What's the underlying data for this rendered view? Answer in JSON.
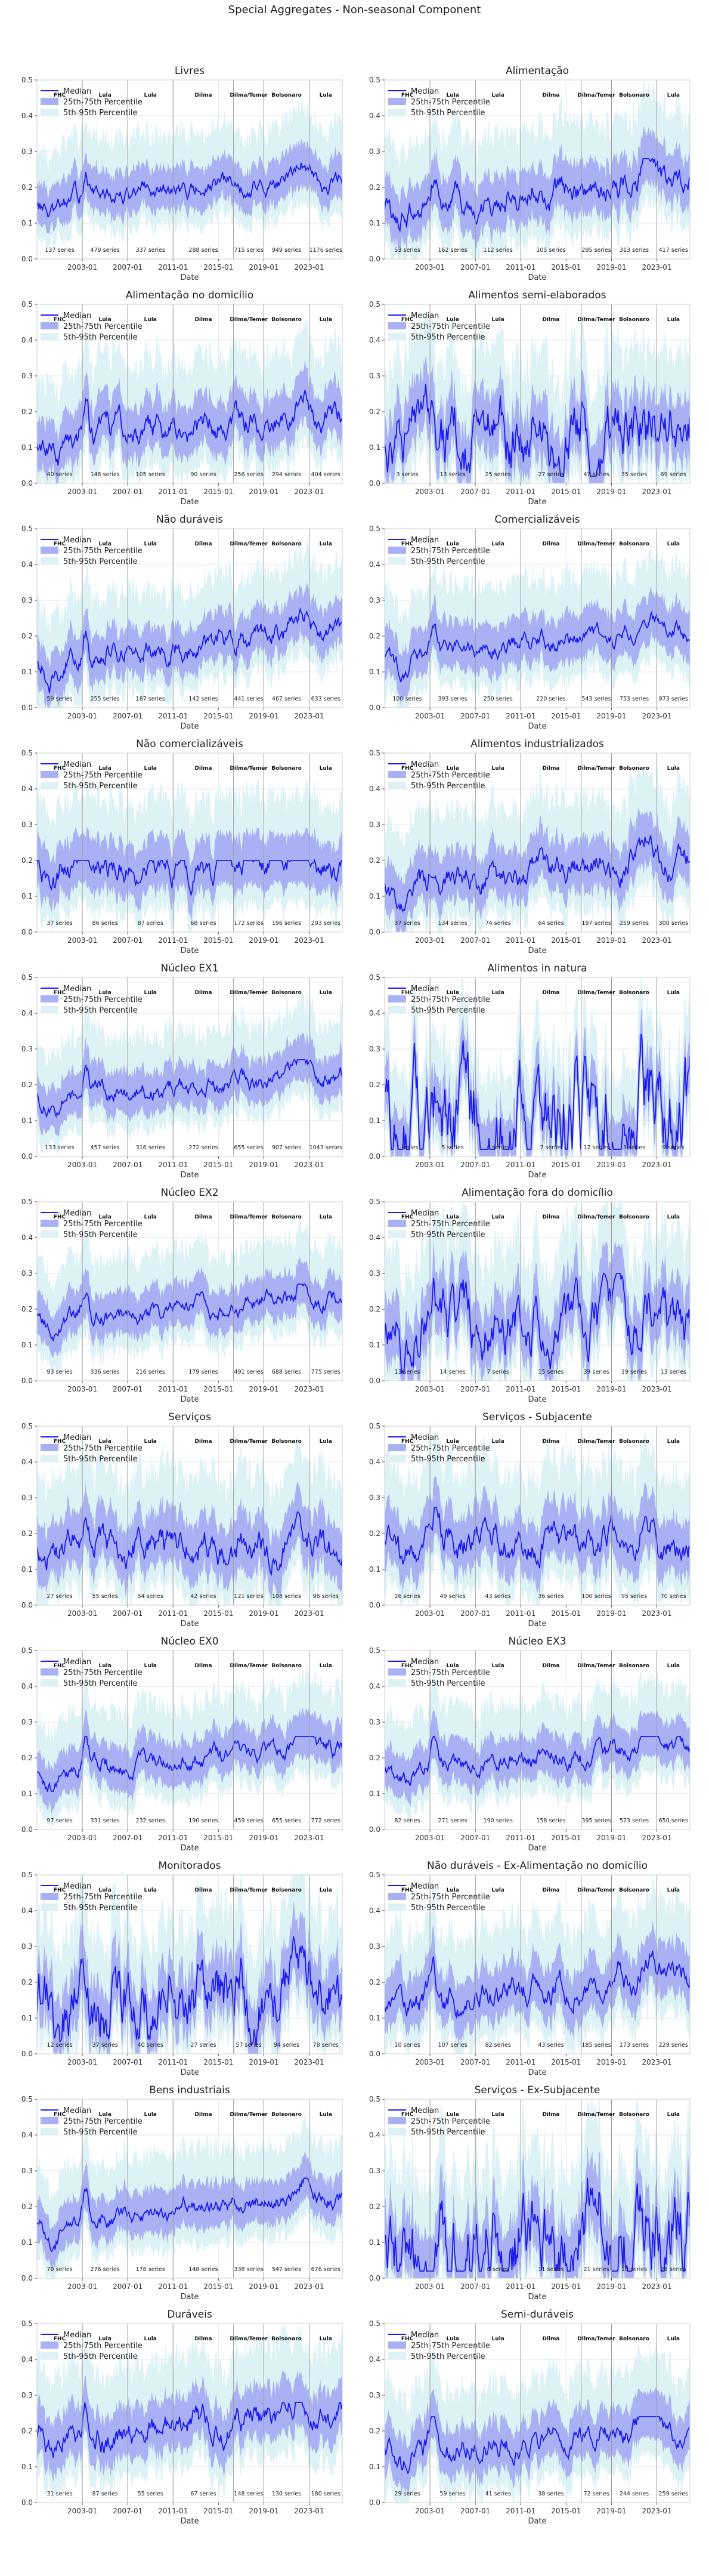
{
  "figure": {
    "suptitle": "Special Aggregates - Non-seasonal Component"
  },
  "chart_data": {
    "type": "line",
    "layout": "12 rows x 2 columns grid of panels",
    "xlabel": "Date",
    "ylim": [
      0.0,
      0.5
    ],
    "yticks": [
      0.0,
      0.1,
      0.2,
      0.3,
      0.4,
      0.5
    ],
    "xlim": [
      "1999-01",
      "2025-12"
    ],
    "xticks": [
      "2003-01",
      "2007-01",
      "2011-01",
      "2015-01",
      "2019-01",
      "2023-01"
    ],
    "grid": true,
    "legend": {
      "placement": "upper-left",
      "entries": [
        "Median",
        "25th-75th Percentile",
        "5th-95th Percentile"
      ]
    },
    "colors": {
      "median": "#1a1aee",
      "iqr": "#a9b1f4",
      "p5_95": "#ddf2f5",
      "divider": "#9a9a9a"
    },
    "eras": [
      "FHC",
      "Lula",
      "Lula",
      "Dilma",
      "Dilma/Temer",
      "Bolsonaro",
      "Lula"
    ],
    "era_boundaries": [
      "2003-01",
      "2007-01",
      "2011-01",
      "2016-05",
      "2019-01",
      "2023-01"
    ],
    "panels": [
      {
        "title": "Livres",
        "counts": [
          "137 series",
          "479 series",
          "337 series",
          "288 series",
          "715 series",
          "949 series",
          "1176 series"
        ],
        "profile": {
          "base": 0.16,
          "trend": 0.06,
          "vol": 0.02,
          "spread": 0.1,
          "pk": 0.28
        }
      },
      {
        "title": "Alimentação",
        "counts": [
          "53 series",
          "162 series",
          "112 series",
          "105 series",
          "295 series",
          "313 series",
          "417 series"
        ],
        "profile": {
          "base": 0.15,
          "trend": 0.07,
          "vol": 0.03,
          "spread": 0.12,
          "pk": 0.28
        }
      },
      {
        "title": "Alimentação no domicílio",
        "counts": [
          "40 series",
          "148 series",
          "105 series",
          "90 series",
          "256 series",
          "294 series",
          "404 series"
        ],
        "profile": {
          "base": 0.12,
          "trend": 0.08,
          "vol": 0.03,
          "spread": 0.12,
          "pk": 0.28
        }
      },
      {
        "title": "Alimentos semi-elaborados",
        "counts": [
          "3 series",
          "13 series",
          "25 series",
          "27 series",
          "47 series",
          "35 series",
          "69 series"
        ],
        "profile": {
          "base": 0.12,
          "trend": 0.05,
          "vol": 0.07,
          "spread": 0.14,
          "pk": 0.36
        }
      },
      {
        "title": "Não duráveis",
        "counts": [
          "59 series",
          "255 series",
          "187 series",
          "142 series",
          "441 series",
          "467 series",
          "633 series"
        ],
        "profile": {
          "base": 0.13,
          "trend": 0.08,
          "vol": 0.025,
          "spread": 0.11,
          "pk": 0.28
        }
      },
      {
        "title": "Comercializáveis",
        "counts": [
          "100 series",
          "393 series",
          "250 series",
          "220 series",
          "543 series",
          "753 series",
          "973 series"
        ],
        "profile": {
          "base": 0.14,
          "trend": 0.08,
          "vol": 0.02,
          "spread": 0.11,
          "pk": 0.27
        }
      },
      {
        "title": "Não comercializáveis",
        "counts": [
          "37 series",
          "86 series",
          "87 series",
          "68 series",
          "172 series",
          "196 series",
          "203 series"
        ],
        "profile": {
          "base": 0.18,
          "trend": 0.0,
          "vol": 0.03,
          "spread": 0.12,
          "pk": 0.2
        }
      },
      {
        "title": "Alimentos industrializados",
        "counts": [
          "37 series",
          "134 series",
          "74 series",
          "64 series",
          "197 series",
          "259 series",
          "300 series"
        ],
        "profile": {
          "base": 0.13,
          "trend": 0.08,
          "vol": 0.03,
          "spread": 0.12,
          "pk": 0.3
        }
      },
      {
        "title": "Núcleo EX1",
        "counts": [
          "133 series",
          "457 series",
          "316 series",
          "272 series",
          "655 series",
          "907 series",
          "1043 series"
        ],
        "profile": {
          "base": 0.17,
          "trend": 0.06,
          "vol": 0.02,
          "spread": 0.1,
          "pk": 0.27
        }
      },
      {
        "title": "Alimentos in natura",
        "counts": [
          "1 series",
          "5 series",
          "6 series",
          "7 series",
          "12 series",
          "3 series",
          "9 series"
        ],
        "profile": {
          "base": 0.12,
          "trend": 0.0,
          "vol": 0.11,
          "spread": 0.12,
          "pk": 0.42
        }
      },
      {
        "title": "Núcleo EX2",
        "counts": [
          "93 series",
          "336 series",
          "216 series",
          "179 series",
          "491 series",
          "688 series",
          "775 series"
        ],
        "profile": {
          "base": 0.17,
          "trend": 0.06,
          "vol": 0.02,
          "spread": 0.1,
          "pk": 0.27
        }
      },
      {
        "title": "Alimentação fora do domicílio",
        "counts": [
          "13 series",
          "14 series",
          "7 series",
          "15 series",
          "39 series",
          "19 series",
          "13 series"
        ],
        "profile": {
          "base": 0.16,
          "trend": 0.0,
          "vol": 0.06,
          "spread": 0.14,
          "pk": 0.3
        }
      },
      {
        "title": "Serviços",
        "counts": [
          "27 series",
          "55 series",
          "54 series",
          "42 series",
          "121 series",
          "108 series",
          "96 series"
        ],
        "profile": {
          "base": 0.19,
          "trend": -0.04,
          "vol": 0.035,
          "spread": 0.13,
          "pk": 0.26
        }
      },
      {
        "title": "Serviços - Subjacente",
        "counts": [
          "26 series",
          "49 series",
          "43 series",
          "36 series",
          "100 series",
          "95 series",
          "70 series"
        ],
        "profile": {
          "base": 0.2,
          "trend": -0.04,
          "vol": 0.035,
          "spread": 0.13,
          "pk": 0.3
        }
      },
      {
        "title": "Núcleo EX0",
        "counts": [
          "97 series",
          "331 series",
          "232 series",
          "190 series",
          "459 series",
          "655 series",
          "772 series"
        ],
        "profile": {
          "base": 0.17,
          "trend": 0.06,
          "vol": 0.02,
          "spread": 0.1,
          "pk": 0.26
        }
      },
      {
        "title": "Núcleo EX3",
        "counts": [
          "82 series",
          "271 series",
          "190 series",
          "158 series",
          "395 series",
          "573 series",
          "650 series"
        ],
        "profile": {
          "base": 0.17,
          "trend": 0.06,
          "vol": 0.02,
          "spread": 0.1,
          "pk": 0.26
        }
      },
      {
        "title": "Monitorados",
        "counts": [
          "12 series",
          "37 series",
          "40 series",
          "27 series",
          "57 series",
          "94 series",
          "78 series"
        ],
        "profile": {
          "base": 0.14,
          "trend": 0.03,
          "vol": 0.07,
          "spread": 0.14,
          "pk": 0.4
        }
      },
      {
        "title": "Não duráveis - Ex-Alimentação no domicílio",
        "counts": [
          "10 series",
          "107 series",
          "82 series",
          "43 series",
          "185 series",
          "173 series",
          "229 series"
        ],
        "profile": {
          "base": 0.14,
          "trend": 0.08,
          "vol": 0.03,
          "spread": 0.12,
          "pk": 0.3
        }
      },
      {
        "title": "Bens industriais",
        "counts": [
          "70 series",
          "276 series",
          "178 series",
          "148 series",
          "338 series",
          "547 series",
          "676 series"
        ],
        "profile": {
          "base": 0.16,
          "trend": 0.07,
          "vol": 0.02,
          "spread": 0.1,
          "pk": 0.28
        }
      },
      {
        "title": "Serviços - Ex-Subjacente",
        "counts": [
          "",
          "",
          "6 series",
          "11 series",
          "21 series",
          "18 series",
          "26 series"
        ],
        "profile": {
          "base": 0.1,
          "trend": 0.05,
          "vol": 0.1,
          "spread": 0.15,
          "pk": 0.48
        }
      },
      {
        "title": "Duráveis",
        "counts": [
          "31 series",
          "87 series",
          "55 series",
          "67 series",
          "148 series",
          "130 series",
          "180 series"
        ],
        "profile": {
          "base": 0.18,
          "trend": 0.07,
          "vol": 0.03,
          "spread": 0.12,
          "pk": 0.28
        }
      },
      {
        "title": "Semi-duráveis",
        "counts": [
          "29 series",
          "59 series",
          "41 series",
          "38 series",
          "72 series",
          "244 series",
          "259 series"
        ],
        "profile": {
          "base": 0.15,
          "trend": 0.06,
          "vol": 0.025,
          "spread": 0.11,
          "pk": 0.24
        }
      }
    ]
  }
}
